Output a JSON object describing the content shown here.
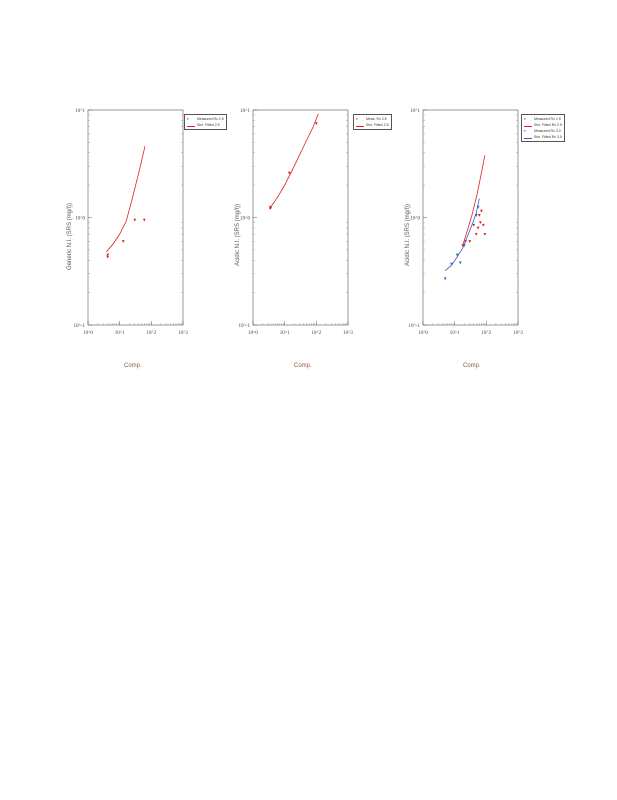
{
  "chart_data": [
    {
      "type": "scatter",
      "xlabel": "Comp.",
      "ylabel": "Generic N.I. (SRS (mg/l))",
      "x_ticks": [
        "10^0",
        "10^1",
        "10^2",
        "10^3"
      ],
      "y_ticks": [
        "10^-1",
        "10^0",
        "10^1"
      ],
      "x_scale": "log",
      "y_scale": "log",
      "xlim": [
        1,
        1000
      ],
      "ylim": [
        0.1,
        10
      ],
      "legend_position": "outside-top-right",
      "series": [
        {
          "name": "Measured Rx 2.5",
          "style": "points",
          "color": "#e02020",
          "x": [
            4.2,
            4.2,
            13,
            30,
            60
          ],
          "y": [
            0.45,
            0.43,
            0.6,
            0.95,
            0.95
          ]
        },
        {
          "name": "Sim. Fitted 2.5",
          "style": "line",
          "color": "#e02020",
          "x": [
            3.8,
            6,
            10,
            16,
            25,
            40,
            63
          ],
          "y": [
            0.48,
            0.56,
            0.7,
            0.92,
            1.5,
            2.6,
            4.6
          ]
        }
      ]
    },
    {
      "type": "scatter",
      "xlabel": "Comp.",
      "ylabel": "Acidic N.I. (SRS (mg/l))",
      "x_ticks": [
        "10^0",
        "10^1",
        "10^2",
        "10^3"
      ],
      "y_ticks": [
        "10^-1",
        "10^0",
        "10^1"
      ],
      "x_scale": "log",
      "y_scale": "log",
      "xlim": [
        1,
        1000
      ],
      "ylim": [
        0.1,
        10
      ],
      "legend_position": "outside-top-right",
      "series": [
        {
          "name": "Meas. Rx 2.5",
          "style": "points",
          "color": "#e02020",
          "x": [
            3.5,
            3.6,
            14,
            100
          ],
          "y": [
            1.25,
            1.22,
            2.6,
            7.5
          ]
        },
        {
          "name": "Sim. Fitted 2.5",
          "style": "line",
          "color": "#e02020",
          "x": [
            3.3,
            6,
            10,
            20,
            40,
            80,
            115
          ],
          "y": [
            1.2,
            1.55,
            2.0,
            3.0,
            4.6,
            7.0,
            9.2
          ]
        }
      ]
    },
    {
      "type": "scatter",
      "xlabel": "Comp.",
      "ylabel": "Acidic N.I. (SRS (mg/l))",
      "x_ticks": [
        "10^0",
        "10^1",
        "10^2",
        "10^3"
      ],
      "y_ticks": [
        "10^-1",
        "10^0",
        "10^1"
      ],
      "x_scale": "log",
      "y_scale": "log",
      "xlim": [
        1,
        1000
      ],
      "ylim": [
        0.1,
        10
      ],
      "legend_position": "outside-top-right",
      "series": [
        {
          "name": "Measured Rx 2.5",
          "style": "points",
          "color": "#e02020",
          "x": [
            18,
            22,
            30,
            40,
            48,
            55,
            60,
            65,
            70,
            80,
            90
          ],
          "y": [
            0.55,
            0.6,
            0.6,
            0.85,
            0.7,
            0.8,
            1.05,
            0.9,
            1.15,
            0.85,
            0.7
          ]
        },
        {
          "name": "Sim. Fitted Rx 2.5",
          "style": "line",
          "color": "#e02020",
          "x": [
            18,
            25,
            35,
            50,
            70,
            90
          ],
          "y": [
            0.55,
            0.75,
            1.05,
            1.6,
            2.6,
            3.8
          ]
        },
        {
          "name": "Measured Rx 3.0",
          "style": "points",
          "color": "#3060c0",
          "x": [
            5,
            8,
            12,
            15,
            20,
            48,
            55
          ],
          "y": [
            0.27,
            0.37,
            0.45,
            0.38,
            0.55,
            1.05,
            1.25
          ]
        },
        {
          "name": "Sim. Fitted Rx 3.0",
          "style": "line",
          "color": "#3060c0",
          "x": [
            5,
            8,
            12,
            18,
            25,
            35,
            48,
            60
          ],
          "y": [
            0.32,
            0.36,
            0.43,
            0.52,
            0.66,
            0.85,
            1.1,
            1.5
          ]
        }
      ]
    }
  ]
}
